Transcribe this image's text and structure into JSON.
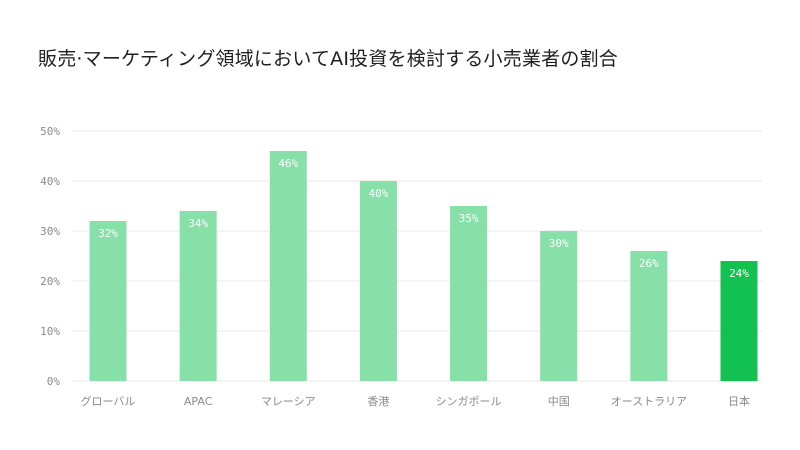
{
  "chart_data": {
    "type": "bar",
    "title": "販売·マーケティング領域においてAI投資を検討する小売業者の割合",
    "categories": [
      "グローバル",
      "APAC",
      "マレーシア",
      "香港",
      "シンガポール",
      "中国",
      "オーストラリア",
      "日本"
    ],
    "values": [
      32,
      34,
      46,
      40,
      35,
      30,
      26,
      24
    ],
    "value_labels": [
      "32%",
      "34%",
      "46%",
      "40%",
      "35%",
      "30%",
      "26%",
      "24%"
    ],
    "yticks": [
      0,
      10,
      20,
      30,
      40,
      50
    ],
    "ytick_labels": [
      "0%",
      "10%",
      "20%",
      "30%",
      "40%",
      "50%"
    ],
    "ylim": [
      0,
      50
    ],
    "xlabel": "",
    "ylabel": "",
    "grid": true,
    "legend": "none",
    "highlight_index": 7,
    "colors": {
      "bar": "#86e0a8",
      "highlight": "#12c150",
      "grid": "#e9e9e9",
      "label": "#ffffff"
    }
  }
}
